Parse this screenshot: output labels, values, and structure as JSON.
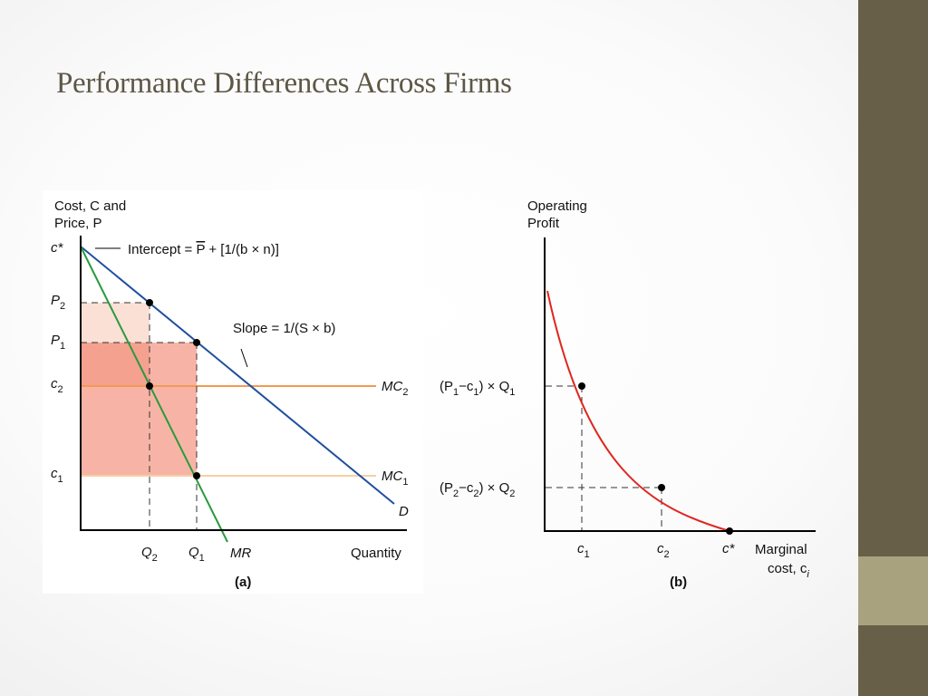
{
  "slide": {
    "title": "Performance Differences Across Firms",
    "colors": {
      "sidebar": "#675f48",
      "sidebar_accent": "#a8a27e",
      "title": "#5d5746"
    }
  },
  "panel_a": {
    "caption": "(a)",
    "y_axis_label_line1": "Cost, C and",
    "y_axis_label_line2": "Price, P",
    "x_axis_label": "Quantity",
    "c_star_label": "c*",
    "p2_label": "P",
    "p2_sub": "2",
    "p1_label": "P",
    "p1_sub": "1",
    "c2_label": "c",
    "c2_sub": "2",
    "c1_label": "c",
    "c1_sub": "1",
    "q2_label": "Q",
    "q2_sub": "2",
    "q1_label": "Q",
    "q1_sub": "1",
    "mr_label": "MR",
    "demand_label": "D",
    "mc2_label": "MC",
    "mc2_sub": "2",
    "mc1_label": "MC",
    "mc1_sub": "1",
    "intercept_pre": "Intercept = ",
    "intercept_pbar": "P",
    "intercept_post": " + [1/(b × n)]",
    "slope_label": "Slope = 1/(S × b)",
    "colors": {
      "demand": "#1f4f9e",
      "mr": "#2a9a3c",
      "mc2": "#f39a52",
      "mc1": "#f7cfa4",
      "profit_light": "#fbe0d6",
      "profit_dark": "#f6a998"
    }
  },
  "panel_b": {
    "caption": "(b)",
    "y_axis_label_line1": "Operating",
    "y_axis_label_line2": "Profit",
    "x_axis_label_line1": "Marginal",
    "x_axis_label_line2": "cost, c",
    "x_axis_sub": "i",
    "profit1_a": "(P",
    "profit1_s1": "1",
    "profit1_b": "−c",
    "profit1_s2": "1",
    "profit1_c": ") × Q",
    "profit1_s3": "1",
    "profit2_a": "(P",
    "profit2_s1": "2",
    "profit2_b": "−c",
    "profit2_s2": "2",
    "profit2_c": ") × Q",
    "profit2_s3": "2",
    "c1_label": "c",
    "c1_sub": "1",
    "c2_label": "c",
    "c2_sub": "2",
    "cstar_label": "c*",
    "colors": {
      "curve": "#e0261e"
    }
  }
}
